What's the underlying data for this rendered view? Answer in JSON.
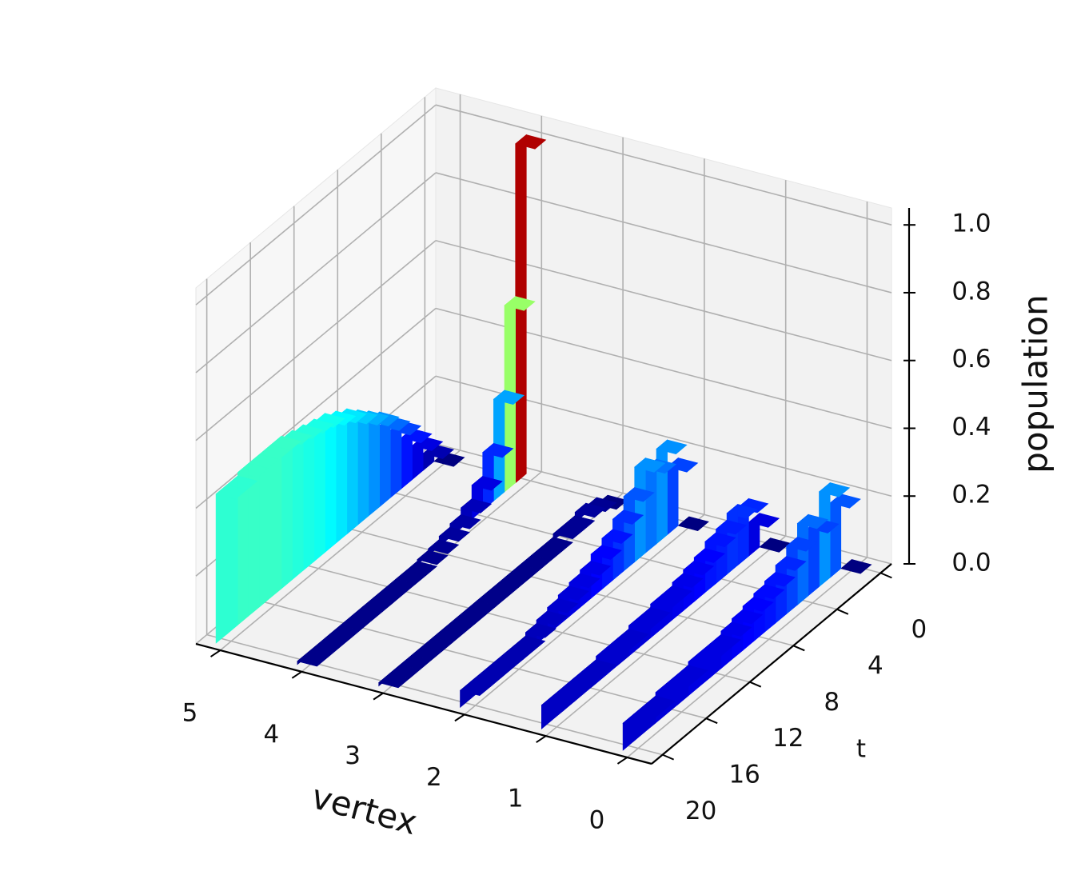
{
  "chart_data": {
    "type": "3d-ribbon",
    "xlabel": "vertex",
    "ylabel": "t",
    "zlabel": "population",
    "xlim": [
      -0.3,
      5.3
    ],
    "xticks": [
      0,
      1,
      2,
      3,
      4,
      5
    ],
    "ylim": [
      -1,
      21
    ],
    "yticks": [
      0,
      4,
      8,
      12,
      16,
      20
    ],
    "zlim": [
      0,
      1.05
    ],
    "zticks": [
      {
        "value": 0,
        "label": "0.0"
      },
      {
        "value": 0.2,
        "label": "0.2"
      },
      {
        "value": 0.4,
        "label": "0.4"
      },
      {
        "value": 0.6,
        "label": "0.6"
      },
      {
        "value": 0.8,
        "label": "0.8"
      },
      {
        "value": 1,
        "label": "1.0"
      }
    ],
    "t": [
      0,
      1,
      2,
      3,
      4,
      5,
      6,
      7,
      8,
      9,
      10,
      11,
      12,
      13,
      14,
      15,
      16,
      17,
      18,
      19,
      20
    ],
    "colormap": "jet",
    "grid": true,
    "series": [
      {
        "values": [
          0,
          0.22,
          0.28,
          0.2,
          0.24,
          0.2,
          0.17,
          0.15,
          0.14,
          0.13,
          0.12,
          0.11,
          0.1,
          0.1,
          0.1,
          0.09,
          0.09,
          0.09,
          0.08,
          0.08,
          0.08
        ]
      },
      {
        "values": [
          0,
          0.1,
          0.17,
          0.18,
          0.16,
          0.15,
          0.13,
          0.12,
          0.11,
          0.1,
          0.1,
          0.09,
          0.09,
          0.08,
          0.08,
          0.08,
          0.07,
          0.07,
          0.07,
          0.07,
          0.07
        ]
      },
      {
        "values": [
          0,
          0.2,
          0.28,
          0.25,
          0.28,
          0.22,
          0.18,
          0.15,
          0.13,
          0.11,
          0.1,
          0.09,
          0.08,
          0.07,
          0.06,
          0.05,
          0.05,
          0.05,
          0.05,
          0.05,
          0.05
        ]
      },
      {
        "values": [
          0,
          0.02,
          0.03,
          0.02,
          0.02,
          0.01,
          0.01,
          0.01,
          0.01,
          0.01,
          0.01,
          0.01,
          0.01,
          0.01,
          0.01,
          0.01,
          0.01,
          0.01,
          0.01,
          0.01,
          0.01
        ]
      },
      {
        "values": [
          1,
          0.55,
          0.3,
          0.17,
          0.1,
          0.06,
          0.04,
          0.03,
          0.02,
          0.015,
          0.01,
          0.01,
          0.01,
          0.01,
          0.01,
          0.01,
          0.01,
          0.01,
          0.01,
          0.01,
          0.01
        ]
      },
      {
        "values": [
          0,
          0.05,
          0.1,
          0.15,
          0.2,
          0.24,
          0.28,
          0.31,
          0.34,
          0.37,
          0.39,
          0.41,
          0.42,
          0.43,
          0.44,
          0.45,
          0.45,
          0.45,
          0.45,
          0.44,
          0.44
        ]
      }
    ]
  }
}
